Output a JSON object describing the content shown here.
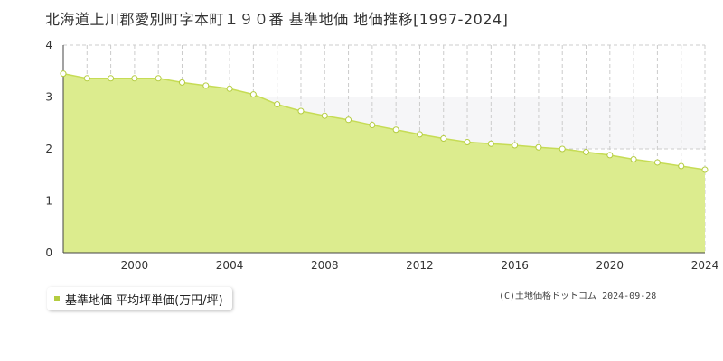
{
  "title": "北海道上川郡愛別町字本町１９０番 基準地価 地価推移[1997-2024]",
  "legend": {
    "label": "基準地価 平均坪単価(万円/坪)"
  },
  "credit": "(C)土地価格ドットコム 2024-09-28",
  "colors": {
    "area_fill": "#dcec8e",
    "line": "#c6dc55",
    "marker_fill": "#ffffff",
    "marker_stroke": "#b4cc40",
    "legend_marker": "#b4cc40",
    "grid": "#cccccc",
    "band": "#f6f6f8",
    "axis": "#444444"
  },
  "chart_data": {
    "type": "area",
    "x": [
      1997,
      1998,
      1999,
      2000,
      2001,
      2002,
      2003,
      2004,
      2005,
      2006,
      2007,
      2008,
      2009,
      2010,
      2011,
      2012,
      2013,
      2014,
      2015,
      2016,
      2017,
      2018,
      2019,
      2020,
      2021,
      2022,
      2023,
      2024
    ],
    "series": [
      {
        "name": "基準地価 平均坪単価(万円/坪)",
        "values": [
          3.45,
          3.36,
          3.36,
          3.36,
          3.36,
          3.28,
          3.22,
          3.16,
          3.05,
          2.86,
          2.73,
          2.64,
          2.56,
          2.46,
          2.37,
          2.28,
          2.2,
          2.13,
          2.1,
          2.07,
          2.03,
          2.0,
          1.94,
          1.88,
          1.8,
          1.74,
          1.67,
          1.6
        ]
      }
    ],
    "xlim": [
      1997,
      2024
    ],
    "ylim": [
      0,
      4
    ],
    "xticks": [
      "2000",
      "2004",
      "2008",
      "2012",
      "2016",
      "2020",
      "2024"
    ],
    "yticks": [
      "0",
      "1",
      "2",
      "3",
      "4"
    ],
    "grid": true,
    "legend_position": "bottom-left"
  }
}
